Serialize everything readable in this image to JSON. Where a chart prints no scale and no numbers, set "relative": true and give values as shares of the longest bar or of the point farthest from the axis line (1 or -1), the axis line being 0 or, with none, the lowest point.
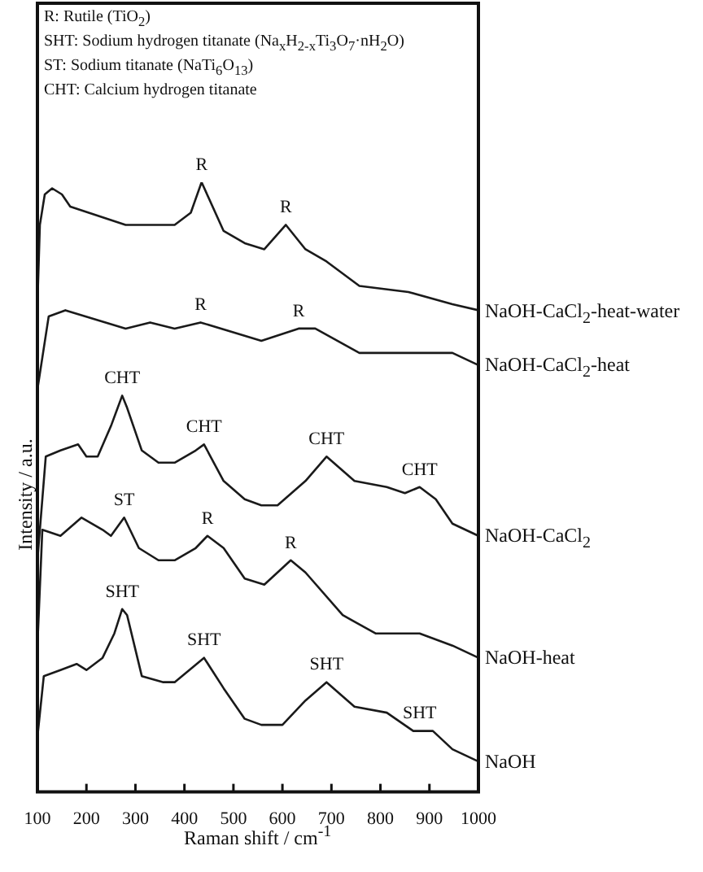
{
  "chart_data": {
    "type": "line",
    "relative": true,
    "xlabel": "Raman shift / cm$^{-1}$",
    "ylabel": "Intensity / a.u.",
    "xlim": [
      100,
      1000
    ],
    "xticks": [
      100,
      200,
      300,
      400,
      500,
      600,
      700,
      800,
      900,
      1000
    ],
    "grid": false,
    "legend": false,
    "marker": "none",
    "line_style": "solid",
    "series": [
      {
        "name": "NaOH-CaCl$_{2}$-heat-water",
        "color": "#1a1a1a",
        "x": [
          100,
          105,
          115,
          130,
          150,
          167,
          280,
          380,
          413,
          435,
          480,
          523,
          563,
          607,
          647,
          690,
          757,
          857,
          947,
          1000
        ],
        "values": [
          0.8,
          0.93,
          0.98,
          0.99,
          0.98,
          0.96,
          0.93,
          0.93,
          0.95,
          1.0,
          0.92,
          0.9,
          0.89,
          0.93,
          0.89,
          0.87,
          0.83,
          0.82,
          0.8,
          0.79
        ]
      },
      {
        "name": "NaOH-CaCl$_{2}$-heat",
        "color": "#1a1a1a",
        "x": [
          100,
          123,
          157,
          280,
          330,
          380,
          433,
          557,
          633,
          667,
          757,
          857,
          947,
          1000
        ],
        "values": [
          0.66,
          0.78,
          0.79,
          0.76,
          0.77,
          0.76,
          0.77,
          0.74,
          0.76,
          0.76,
          0.72,
          0.72,
          0.72,
          0.7
        ]
      },
      {
        "name": "NaOH-CaCl$_{2}$",
        "color": "#1a1a1a",
        "x": [
          100,
          117,
          147,
          183,
          200,
          223,
          250,
          273,
          283,
          313,
          347,
          380,
          423,
          440,
          480,
          523,
          557,
          590,
          647,
          690,
          747,
          813,
          850,
          880,
          913,
          947,
          1000
        ],
        "values": [
          0.38,
          0.55,
          0.56,
          0.57,
          0.55,
          0.55,
          0.6,
          0.65,
          0.63,
          0.56,
          0.54,
          0.54,
          0.56,
          0.57,
          0.51,
          0.48,
          0.47,
          0.47,
          0.51,
          0.55,
          0.51,
          0.5,
          0.49,
          0.5,
          0.48,
          0.44,
          0.42
        ]
      },
      {
        "name": "NaOH-heat",
        "color": "#1a1a1a",
        "x": [
          100,
          110,
          147,
          190,
          233,
          250,
          277,
          307,
          347,
          380,
          423,
          447,
          480,
          523,
          563,
          617,
          647,
          723,
          790,
          880,
          947,
          1000
        ],
        "values": [
          0.24,
          0.43,
          0.42,
          0.45,
          0.43,
          0.42,
          0.45,
          0.4,
          0.38,
          0.38,
          0.4,
          0.42,
          0.4,
          0.35,
          0.34,
          0.38,
          0.36,
          0.29,
          0.26,
          0.26,
          0.24,
          0.22
        ]
      },
      {
        "name": "NaOH",
        "color": "#1a1a1a",
        "x": [
          100,
          113,
          147,
          180,
          200,
          233,
          257,
          273,
          283,
          313,
          357,
          380,
          440,
          480,
          523,
          557,
          600,
          647,
          690,
          747,
          813,
          867,
          907,
          947,
          1000
        ],
        "values": [
          0.09,
          0.19,
          0.2,
          0.21,
          0.2,
          0.22,
          0.26,
          0.3,
          0.29,
          0.19,
          0.18,
          0.18,
          0.22,
          0.17,
          0.12,
          0.11,
          0.11,
          0.15,
          0.18,
          0.14,
          0.13,
          0.1,
          0.1,
          0.07,
          0.05
        ]
      }
    ],
    "annotations": [
      "R: Rutile (TiO$_{2}$)",
      "SHT: Sodium hydrogen titanate (Na$_{x}$H$_{2-x}$Ti$_{3}$O$_{7}$·nH$_{2}$O)",
      "ST: Sodium titanate (NaTi$_{6}$O$_{13}$)",
      "CHT: Calcium hydrogen titanate",
      {
        "text": "R",
        "x": 435,
        "y": 1.0
      },
      {
        "text": "R",
        "x": 607,
        "y": 0.93
      },
      {
        "text": "R",
        "x": 433,
        "y": 0.77
      },
      {
        "text": "R",
        "x": 633,
        "y": 0.76
      },
      {
        "text": "CHT",
        "x": 273,
        "y": 0.65
      },
      {
        "text": "CHT",
        "x": 440,
        "y": 0.57
      },
      {
        "text": "CHT",
        "x": 690,
        "y": 0.55
      },
      {
        "text": "CHT",
        "x": 880,
        "y": 0.5
      },
      {
        "text": "ST",
        "x": 277,
        "y": 0.45
      },
      {
        "text": "R",
        "x": 447,
        "y": 0.42
      },
      {
        "text": "R",
        "x": 617,
        "y": 0.38
      },
      {
        "text": "SHT",
        "x": 273,
        "y": 0.3
      },
      {
        "text": "SHT",
        "x": 440,
        "y": 0.22
      },
      {
        "text": "SHT",
        "x": 690,
        "y": 0.18
      },
      {
        "text": "SHT",
        "x": 880,
        "y": 0.1
      }
    ]
  }
}
